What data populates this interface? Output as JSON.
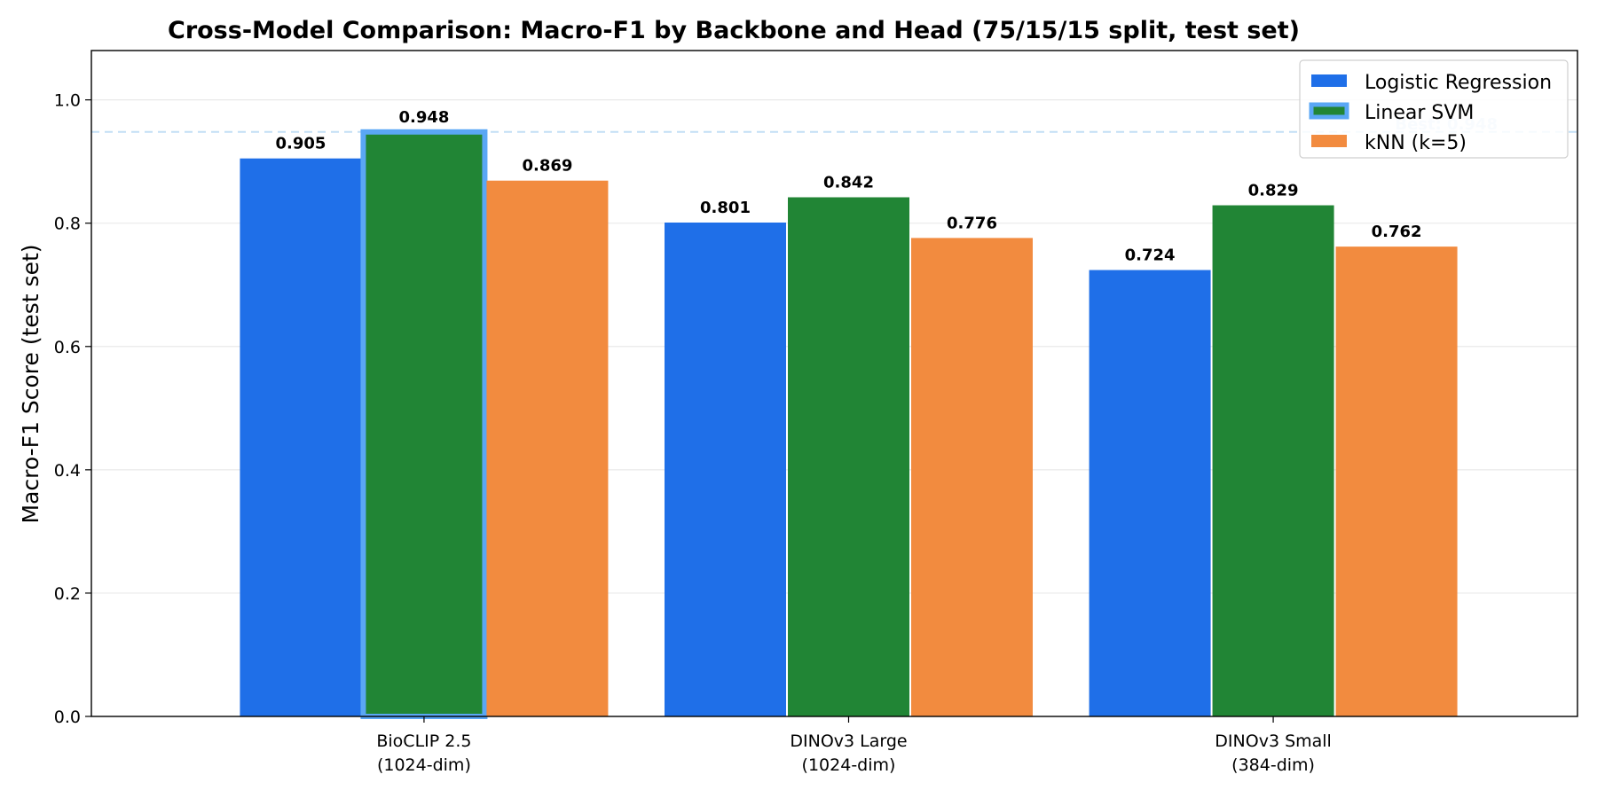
{
  "chart_data": {
    "type": "bar",
    "title": "Cross-Model Comparison: Macro-F1 by Backbone and Head (75/15/15 split, test set)",
    "ylabel": "Macro-F1 Score (test set)",
    "xlabel": "",
    "ylim": [
      0,
      1.08
    ],
    "yticks": [
      "0.0",
      "0.2",
      "0.4",
      "0.6",
      "0.8",
      "1.0"
    ],
    "grid": "horizontal",
    "legend_position": "top-right",
    "categories": [
      [
        "BioCLIP 2.5",
        "(1024-dim)"
      ],
      [
        "DINOv3 Large",
        "(1024-dim)"
      ],
      [
        "DINOv3 Small",
        "(384-dim)"
      ]
    ],
    "series": [
      {
        "name": "Logistic Regression",
        "color": "#1f6fe8",
        "values": [
          0.905,
          0.801,
          0.724
        ],
        "labels": [
          "0.905",
          "0.801",
          "0.724"
        ]
      },
      {
        "name": "Linear SVM",
        "color": "#218535",
        "values": [
          0.948,
          0.842,
          0.829
        ],
        "labels": [
          "0.948",
          "0.842",
          "0.829"
        ]
      },
      {
        "name": "kNN (k=5)",
        "color": "#f28b3f",
        "values": [
          0.869,
          0.776,
          0.762
        ],
        "labels": [
          "0.869",
          "0.776",
          "0.762"
        ]
      }
    ],
    "best": {
      "value": 0.948,
      "label": "Best: 0.948",
      "series_index": 1,
      "category_index": 0,
      "highlight_color": "#5aa7f5",
      "line_color": "#9ccbef"
    }
  }
}
